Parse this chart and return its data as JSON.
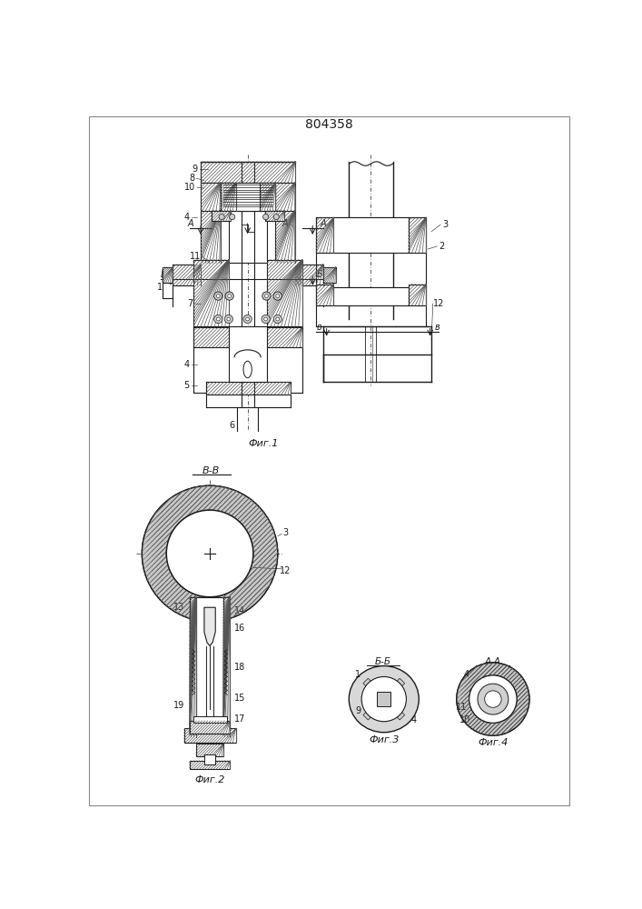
{
  "title": "804358",
  "bg_color": "#ffffff",
  "line_color": "#1a1a1a",
  "fig1_caption": "Фиг.1",
  "fig2_caption": "Фиг.2",
  "fig3_caption": "Фиг.3",
  "fig4_caption": "Фиг.4"
}
